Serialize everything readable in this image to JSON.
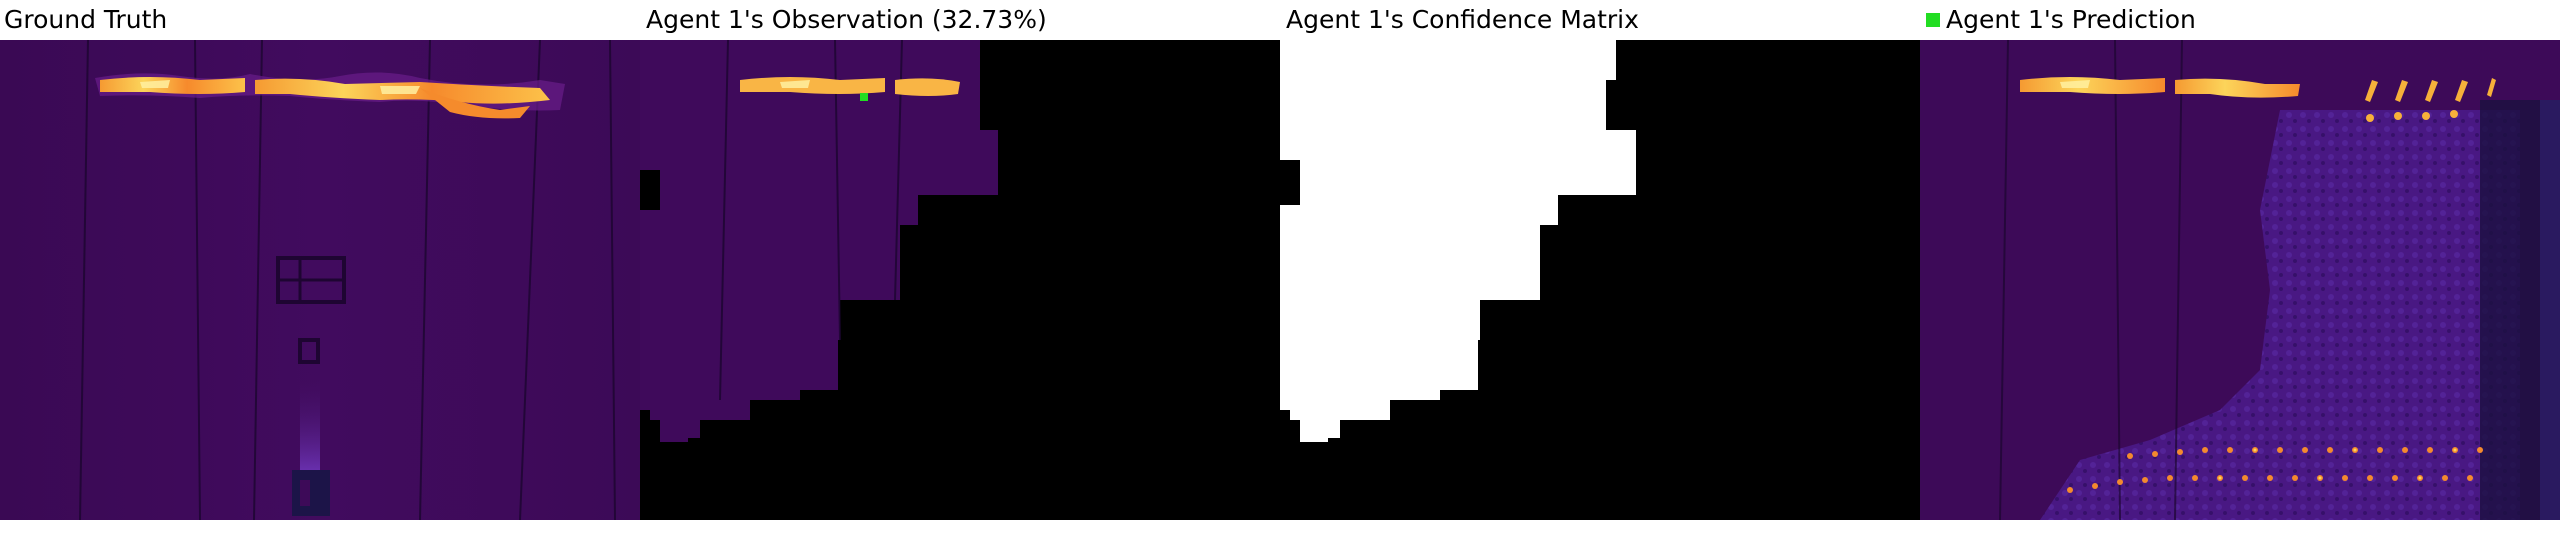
{
  "panels": {
    "ground_truth": {
      "title": "Ground Truth"
    },
    "observation": {
      "title": "Agent 1's Observation (32.73%)"
    },
    "confidence": {
      "title": "Agent 1's Confidence Matrix"
    },
    "prediction": {
      "title": "Agent 1's Prediction"
    }
  },
  "legend": {
    "marker_color": "#22dd22"
  },
  "colors": {
    "background": "#3d0a58",
    "mask": "#000000",
    "confidence_known": "#ffffff",
    "hot": "#fdd040",
    "warm": "#f57a2a"
  }
}
